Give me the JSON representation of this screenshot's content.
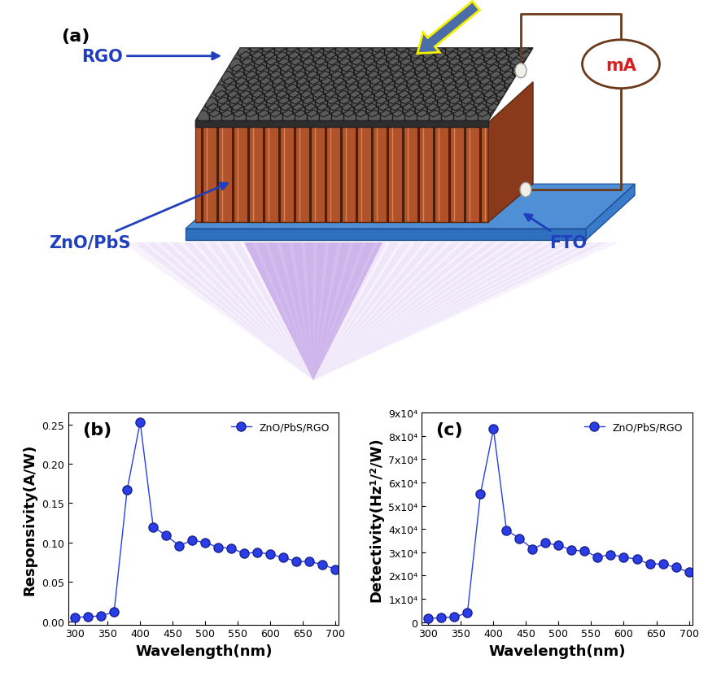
{
  "diagram": {
    "panel": "(a)",
    "labels": {
      "top_layer": "RGO",
      "middle_layer": "ZnO/PbS",
      "substrate": "FTO",
      "meter": "mA"
    }
  },
  "chart_data": [
    {
      "type": "line",
      "title": "(b)",
      "x_label": "Wavelength(nm)",
      "y_label": "Responsivity(A/W)",
      "x": [
        300,
        320,
        340,
        360,
        380,
        400,
        420,
        440,
        460,
        480,
        500,
        520,
        540,
        560,
        580,
        600,
        620,
        640,
        660,
        680,
        700
      ],
      "series": [
        {
          "name": "ZnO/PbS/RGO",
          "color": "#2b3ee6",
          "marker": "o",
          "line_style": "solid",
          "values": [
            0.005,
            0.006,
            0.007,
            0.012,
            0.167,
            0.253,
            0.12,
            0.109,
            0.096,
            0.103,
            0.1,
            0.094,
            0.093,
            0.086,
            0.088,
            0.085,
            0.081,
            0.076,
            0.076,
            0.072,
            0.066
          ]
        }
      ],
      "xlim": [
        290,
        705
      ],
      "xticks": [
        300,
        350,
        400,
        450,
        500,
        550,
        600,
        650,
        700
      ],
      "ylim": [
        -0.004,
        0.265
      ],
      "yticks": [
        {
          "value": 0,
          "label": "0.00"
        },
        {
          "value": 0.05,
          "label": "0.05"
        },
        {
          "value": 0.1,
          "label": "0.10"
        },
        {
          "value": 0.15,
          "label": "0.15"
        },
        {
          "value": 0.2,
          "label": "0.20"
        },
        {
          "value": 0.25,
          "label": "0.25"
        }
      ],
      "legend": "upper right"
    },
    {
      "type": "line",
      "title": "(c)",
      "x_label": "Wavelength(nm)",
      "y_label": "Detectivity(Hz¹/²/W)",
      "x": [
        300,
        320,
        340,
        360,
        380,
        400,
        420,
        440,
        460,
        480,
        500,
        520,
        540,
        560,
        580,
        600,
        620,
        640,
        660,
        680,
        700
      ],
      "series": [
        {
          "name": "ZnO/PbS/RGO",
          "color": "#2b3ee6",
          "marker": "o",
          "line_style": "solid",
          "values": [
            1500,
            2000,
            2200,
            4000,
            55000,
            83000,
            39500,
            36000,
            31500,
            34000,
            33000,
            31000,
            30500,
            28000,
            29000,
            28000,
            27000,
            25000,
            25000,
            23500,
            21500
          ]
        }
      ],
      "xlim": [
        290,
        705
      ],
      "xticks": [
        300,
        350,
        400,
        450,
        500,
        550,
        600,
        650,
        700
      ],
      "ylim": [
        -1000,
        90000
      ],
      "yticks": [
        {
          "value": 0,
          "label": "0"
        },
        {
          "value": 10000,
          "label": "1x10⁴"
        },
        {
          "value": 20000,
          "label": "2x10⁴"
        },
        {
          "value": 30000,
          "label": "3x10⁴"
        },
        {
          "value": 40000,
          "label": "4x10⁴"
        },
        {
          "value": 50000,
          "label": "5x10⁴"
        },
        {
          "value": 60000,
          "label": "6x10⁴"
        },
        {
          "value": 70000,
          "label": "7x10⁴"
        },
        {
          "value": 80000,
          "label": "8x10⁴"
        },
        {
          "value": 90000,
          "label": "9x10⁴"
        }
      ],
      "legend": "upper right"
    }
  ]
}
